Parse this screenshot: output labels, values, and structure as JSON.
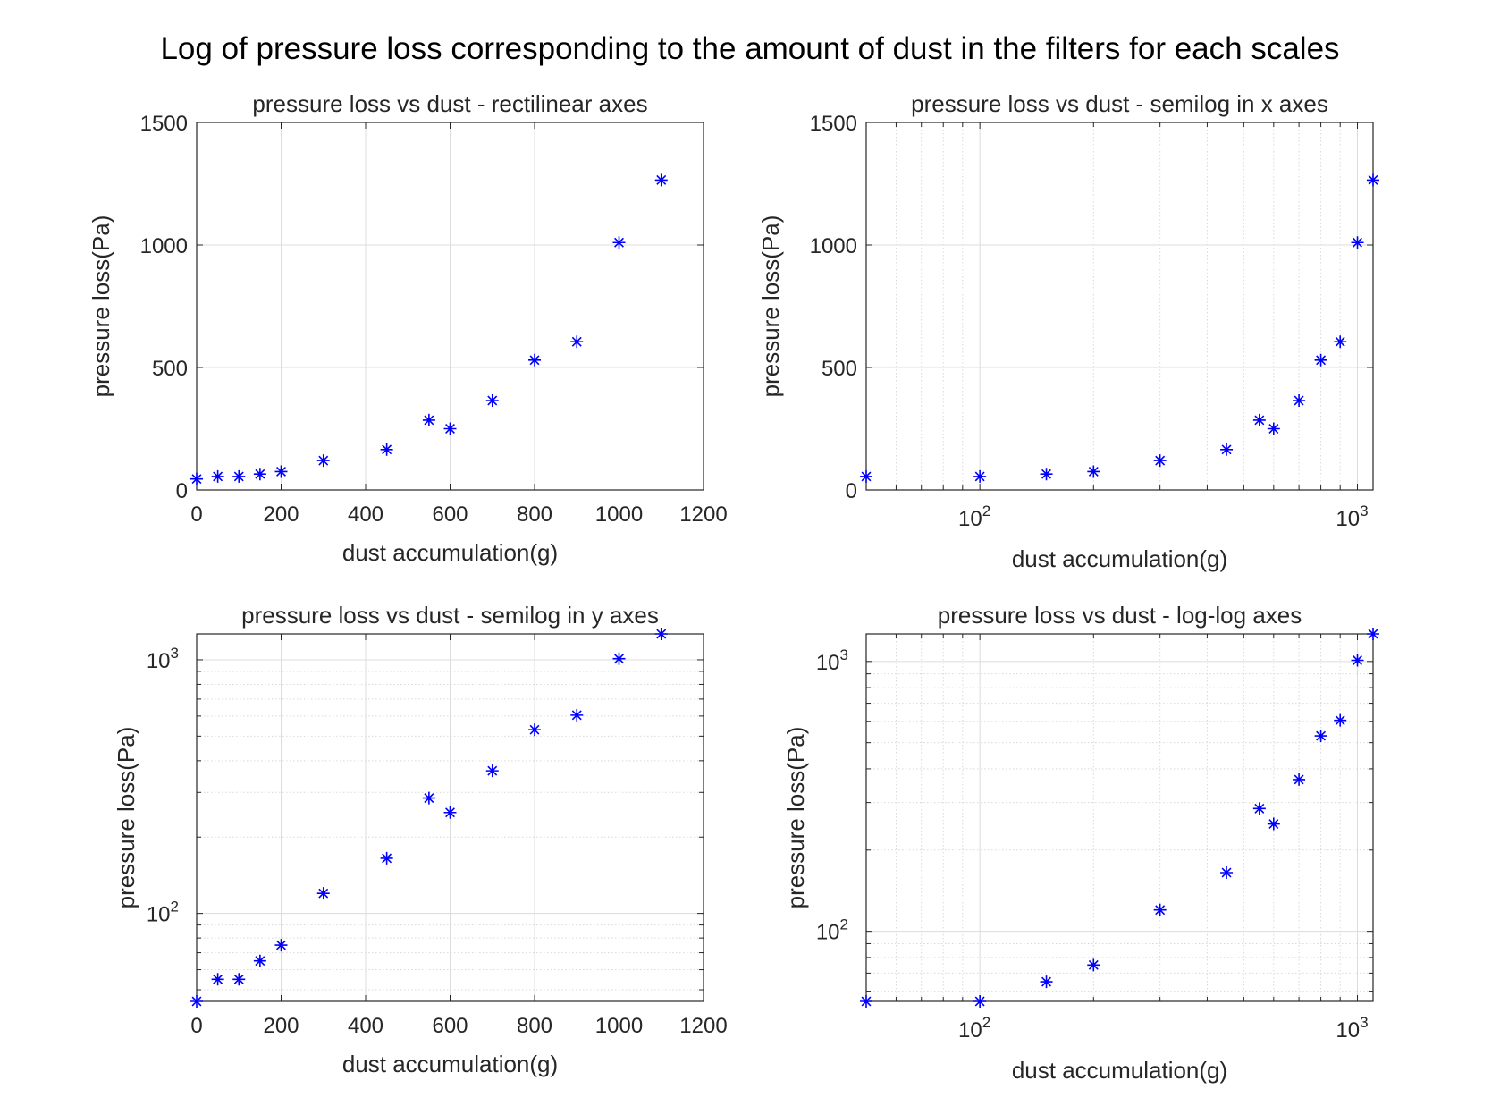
{
  "figure_title": "Log of pressure loss corresponding to the amount of dust in the filters for each scales",
  "marker_color": "#0000ff",
  "chart_data": [
    {
      "type": "scatter",
      "title": "pressure loss vs dust - rectilinear axes",
      "xlabel": "dust accumulation(g)",
      "ylabel": "pressure loss(Pa)",
      "xscale": "linear",
      "yscale": "linear",
      "xlim": [
        0,
        1200
      ],
      "ylim": [
        0,
        1500
      ],
      "xticks": [
        0,
        200,
        400,
        600,
        800,
        1000,
        1200
      ],
      "xtick_labels": [
        "0",
        "200",
        "400",
        "600",
        "800",
        "1000",
        "1200"
      ],
      "yticks": [
        0,
        500,
        1000,
        1500
      ],
      "ytick_labels": [
        "0",
        "500",
        "1000",
        "1500"
      ],
      "grid": true,
      "marker": "*",
      "x": [
        0,
        50,
        100,
        150,
        200,
        300,
        450,
        550,
        600,
        700,
        800,
        900,
        1000,
        1100
      ],
      "y": [
        45,
        55,
        55,
        65,
        75,
        120,
        165,
        285,
        250,
        365,
        530,
        605,
        1010,
        1265
      ]
    },
    {
      "type": "scatter",
      "title": "pressure loss vs dust - semilog in x axes",
      "xlabel": "dust accumulation(g)",
      "ylabel": "pressure loss(Pa)",
      "xscale": "log",
      "yscale": "linear",
      "xlim": [
        50,
        1100
      ],
      "ylim": [
        0,
        1500
      ],
      "xticks": [
        100,
        1000
      ],
      "xtick_labels": [
        [
          "10",
          "2"
        ],
        [
          "10",
          "3"
        ]
      ],
      "yticks": [
        0,
        500,
        1000,
        1500
      ],
      "ytick_labels": [
        "0",
        "500",
        "1000",
        "1500"
      ],
      "grid": true,
      "marker": "*",
      "x": [
        50,
        100,
        150,
        200,
        300,
        450,
        550,
        600,
        700,
        800,
        900,
        1000,
        1100
      ],
      "y": [
        55,
        55,
        65,
        75,
        120,
        165,
        285,
        250,
        365,
        530,
        605,
        1010,
        1265
      ]
    },
    {
      "type": "scatter",
      "title": "pressure loss vs dust - semilog in y axes",
      "xlabel": "dust accumulation(g)",
      "ylabel": "pressure loss(Pa)",
      "xscale": "linear",
      "yscale": "log",
      "xlim": [
        0,
        1200
      ],
      "ylim": [
        45,
        1265
      ],
      "xticks": [
        0,
        200,
        400,
        600,
        800,
        1000,
        1200
      ],
      "xtick_labels": [
        "0",
        "200",
        "400",
        "600",
        "800",
        "1000",
        "1200"
      ],
      "yticks": [
        100,
        1000
      ],
      "ytick_labels": [
        [
          "10",
          "2"
        ],
        [
          "10",
          "3"
        ]
      ],
      "grid": true,
      "marker": "*",
      "x": [
        0,
        50,
        100,
        150,
        200,
        300,
        450,
        550,
        600,
        700,
        800,
        900,
        1000,
        1100
      ],
      "y": [
        45,
        55,
        55,
        65,
        75,
        120,
        165,
        285,
        250,
        365,
        530,
        605,
        1010,
        1265
      ]
    },
    {
      "type": "scatter",
      "title": "pressure loss vs dust - log-log axes",
      "xlabel": "dust accumulation(g)",
      "ylabel": "pressure loss(Pa)",
      "xscale": "log",
      "yscale": "log",
      "xlim": [
        50,
        1100
      ],
      "ylim": [
        55,
        1265
      ],
      "xticks": [
        100,
        1000
      ],
      "xtick_labels": [
        [
          "10",
          "2"
        ],
        [
          "10",
          "3"
        ]
      ],
      "yticks": [
        100,
        1000
      ],
      "ytick_labels": [
        [
          "10",
          "2"
        ],
        [
          "10",
          "3"
        ]
      ],
      "grid": true,
      "marker": "*",
      "x": [
        50,
        100,
        150,
        200,
        300,
        450,
        550,
        600,
        700,
        800,
        900,
        1000,
        1100
      ],
      "y": [
        55,
        55,
        65,
        75,
        120,
        165,
        285,
        250,
        365,
        530,
        605,
        1010,
        1265
      ]
    }
  ]
}
